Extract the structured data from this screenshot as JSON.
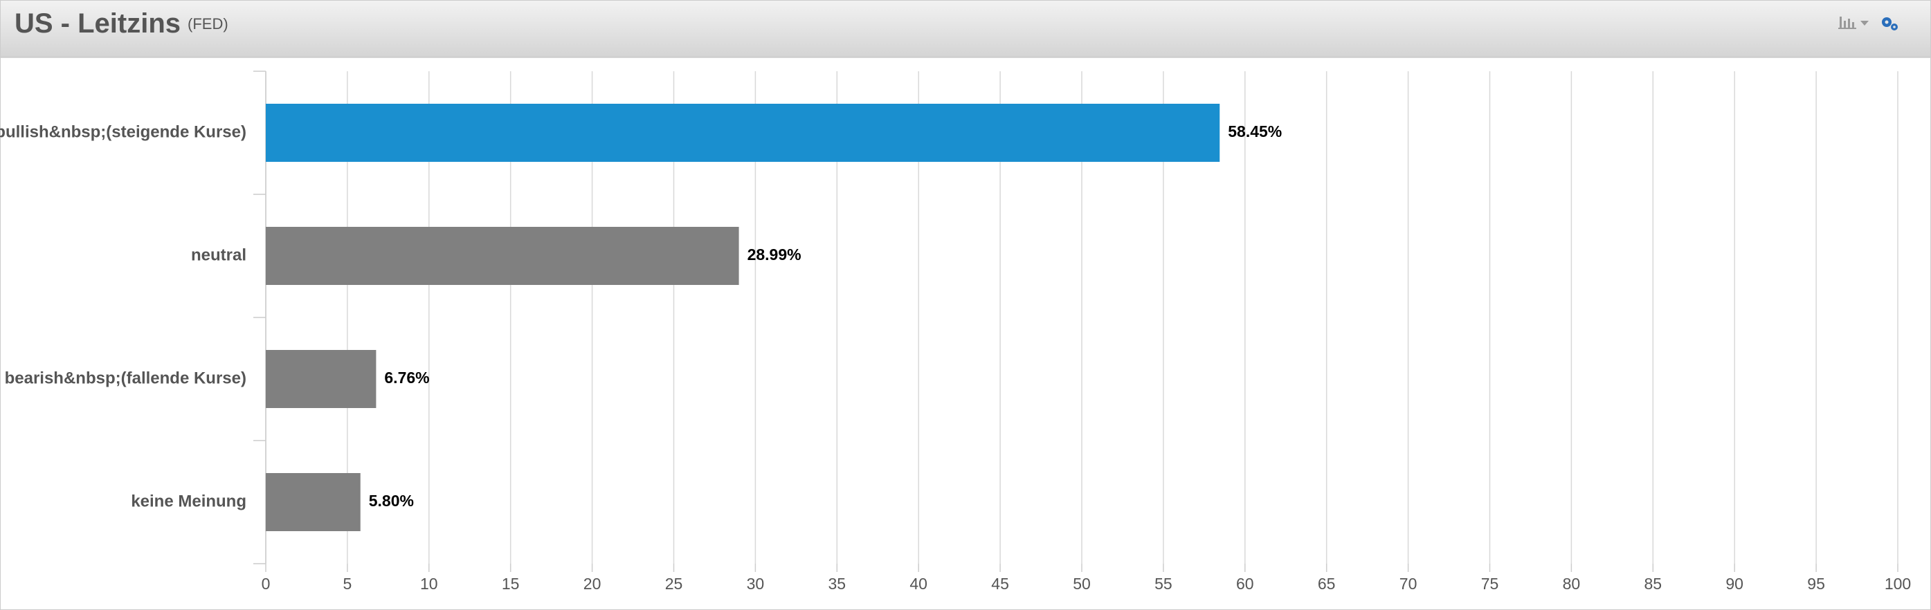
{
  "chart_data": {
    "type": "bar",
    "orientation": "horizontal",
    "title": "US - Leitzins",
    "subtitle": "(FED)",
    "categories": [
      "bullish&nbsp;(steigende Kurse)",
      "neutral",
      "bearish&nbsp;(fallende Kurse)",
      "keine Meinung"
    ],
    "values": [
      58.45,
      28.99,
      6.76,
      5.8
    ],
    "value_labels": [
      "58.45%",
      "28.99%",
      "6.76%",
      "5.80%"
    ],
    "colors": [
      "#1a8fcf",
      "#808080",
      "#808080",
      "#808080"
    ],
    "xlim": [
      0,
      100
    ],
    "xticks": [
      0,
      5,
      10,
      15,
      20,
      25,
      30,
      35,
      40,
      45,
      50,
      55,
      60,
      65,
      70,
      75,
      80,
      85,
      90,
      95,
      100
    ],
    "grid": true
  }
}
